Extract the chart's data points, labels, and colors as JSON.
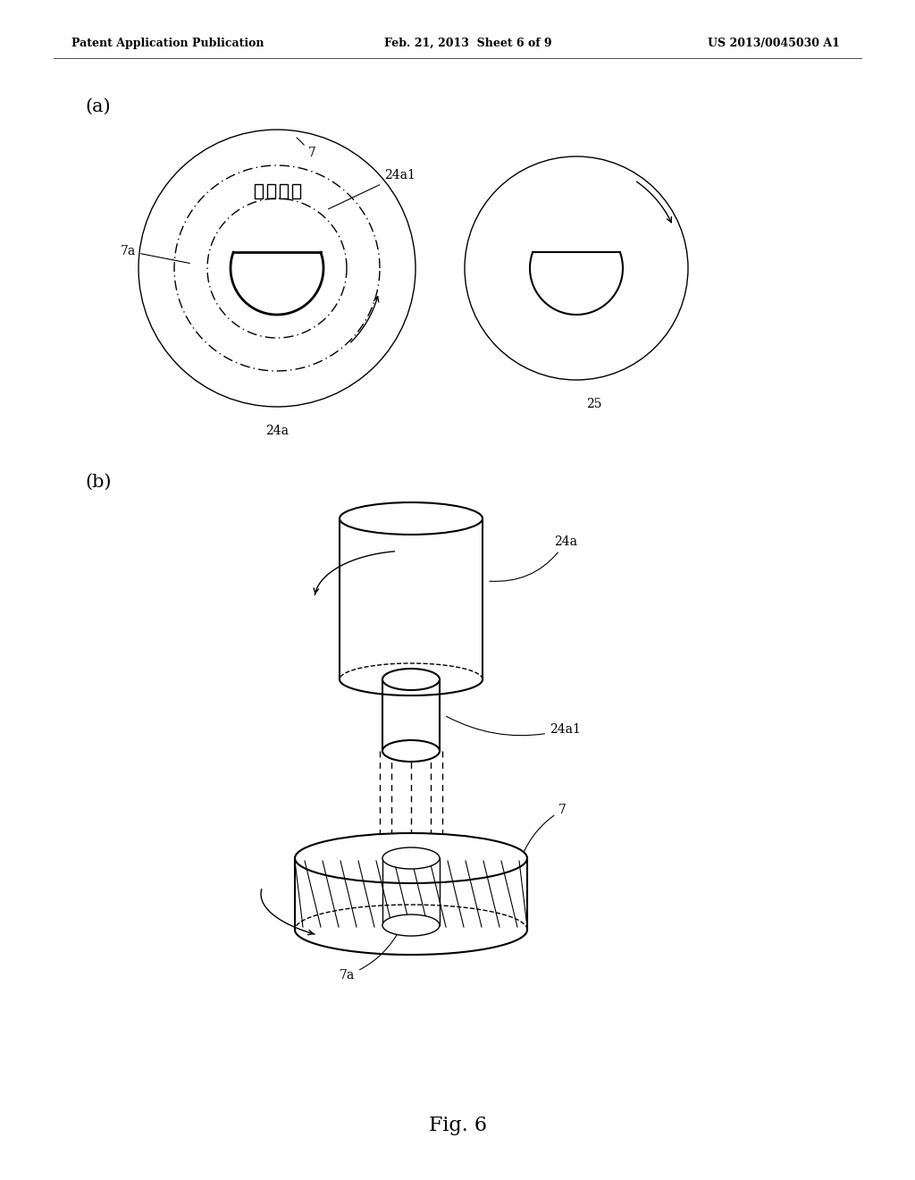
{
  "bg_color": "#ffffff",
  "line_color": "#000000",
  "header_left": "Patent Application Publication",
  "header_mid": "Feb. 21, 2013  Sheet 6 of 9",
  "header_right": "US 2013/0045030 A1",
  "fig_label": "Fig. 6",
  "label_a": "(a)",
  "label_b": "(b)",
  "figsize": [
    10.24,
    13.2
  ],
  "dpi": 100
}
